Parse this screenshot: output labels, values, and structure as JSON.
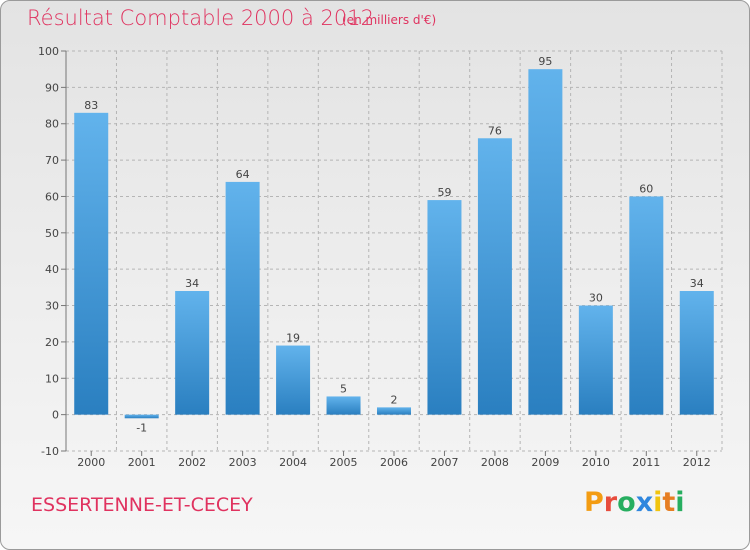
{
  "page": {
    "title": "Résultat Comptable 2000 à 2012",
    "subtitle": "(en milliers d'€)",
    "commune": "ESSERTENNE-ET-CECEY",
    "brand": "Proxiti"
  },
  "colors": {
    "accent": "#e0325f",
    "bar_light": "#62b3ec",
    "bar_dark": "#2a7fc0",
    "axis_text": "#444444",
    "grid": "#b5b5b5"
  },
  "chart_data": {
    "type": "bar",
    "title": "Résultat Comptable 2000 à 2012",
    "subtitle": "(en milliers d'€)",
    "xlabel": "",
    "ylabel": "",
    "categories": [
      "2000",
      "2001",
      "2002",
      "2003",
      "2004",
      "2005",
      "2006",
      "2007",
      "2008",
      "2009",
      "2010",
      "2011",
      "2012"
    ],
    "values": [
      83,
      -1,
      34,
      64,
      19,
      5,
      2,
      59,
      76,
      95,
      30,
      60,
      34
    ],
    "ylim": [
      -10,
      100
    ],
    "yticks": [
      -10,
      0,
      10,
      20,
      30,
      40,
      50,
      60,
      70,
      80,
      90,
      100
    ],
    "grid": true
  }
}
